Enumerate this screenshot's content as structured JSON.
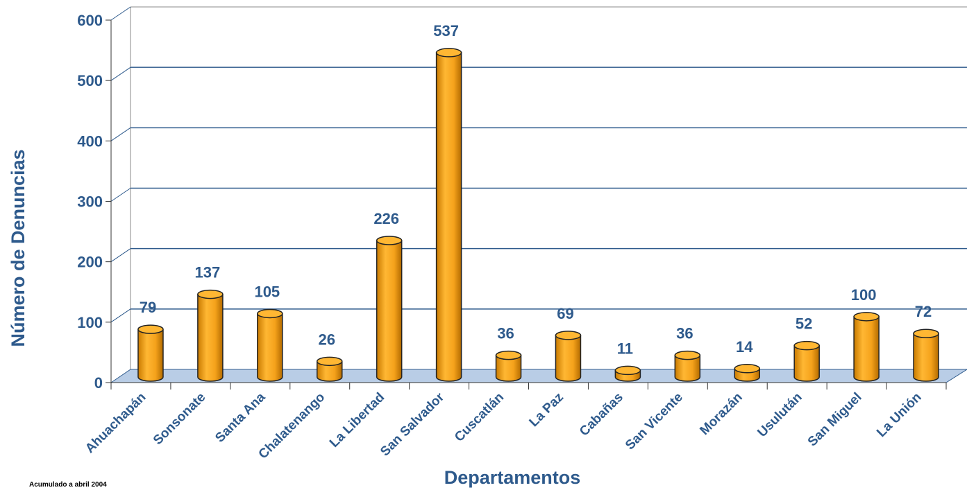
{
  "chart_data": {
    "type": "bar",
    "categories": [
      "Ahuachapán",
      "Sonsonate",
      "Santa Ana",
      "Chalatenango",
      "La Libertad",
      "San Salvador",
      "Cuscatlán",
      "La Paz",
      "Cabañas",
      "San Vicente",
      "Morazán",
      "Usulután",
      "San Miguel",
      "La Unión"
    ],
    "values": [
      79,
      137,
      105,
      26,
      226,
      537,
      36,
      69,
      11,
      36,
      14,
      52,
      100,
      72
    ],
    "xlabel": "Departamentos",
    "ylabel": "Número de Denuncias",
    "ylim": [
      0,
      600
    ],
    "yticks": [
      0,
      100,
      200,
      300,
      400,
      500,
      600
    ],
    "grid": true,
    "style": "3d-cylinder",
    "colors": {
      "bar": "#f5a21b",
      "bar_dark": "#c97a00",
      "axis_text": "#2e5a8c",
      "grid": "#2e5a8c",
      "floor": "#b9cde6"
    }
  },
  "footnote": "Acumulado a abril 2004"
}
